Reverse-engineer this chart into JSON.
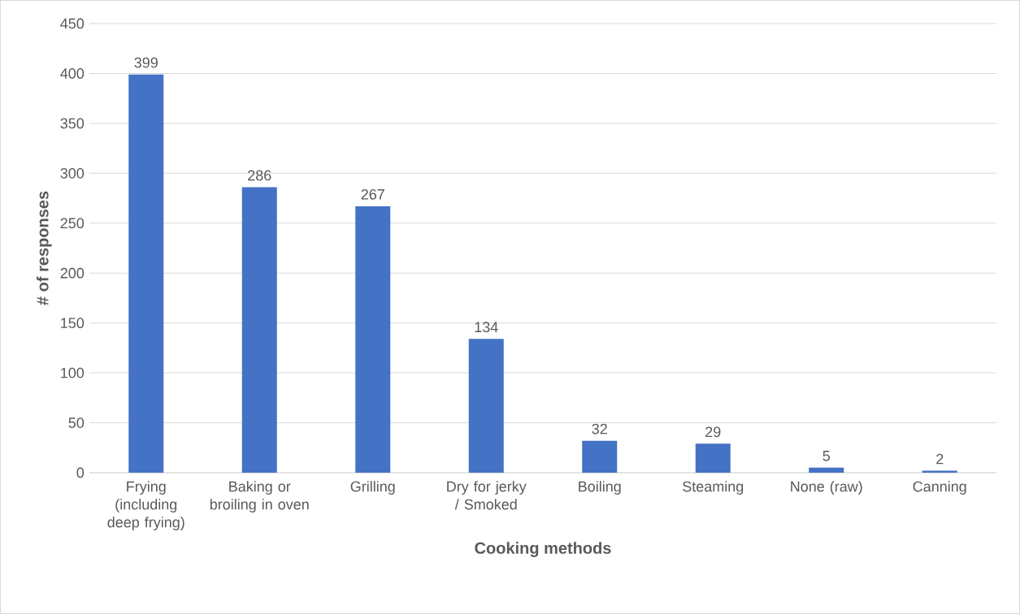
{
  "chart_data": {
    "type": "bar",
    "xlabel": "Cooking methods",
    "ylabel": "# of responses",
    "categories": [
      "Frying (including deep frying)",
      "Baking or broiling in oven",
      "Grilling",
      "Dry for jerky / Smoked",
      "Boiling",
      "Steaming",
      "None (raw)",
      "Canning"
    ],
    "values": [
      399,
      286,
      267,
      134,
      32,
      29,
      5,
      2
    ],
    "color": "#4472c4",
    "ylim": [
      0,
      450
    ],
    "yticks": [
      0,
      50,
      100,
      150,
      200,
      250,
      300,
      350,
      400,
      450
    ],
    "grid": "y",
    "data_labels": true
  }
}
